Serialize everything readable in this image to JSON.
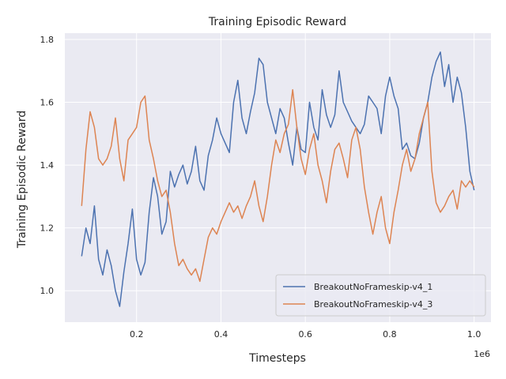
{
  "chart_data": {
    "type": "line",
    "title": "Training Episodic Reward",
    "xlabel": "Timesteps",
    "ylabel": "Training Episodic Reward",
    "x_offset_label": "1e6",
    "xlim": [
      0.03,
      1.04
    ],
    "ylim": [
      0.9,
      1.82
    ],
    "x_ticks": [
      0.2,
      0.4,
      0.6,
      0.8,
      1.0
    ],
    "x_tick_labels": [
      "0.2",
      "0.4",
      "0.6",
      "0.8",
      "1.0"
    ],
    "y_ticks": [
      1.0,
      1.2,
      1.4,
      1.6,
      1.8
    ],
    "y_tick_labels": [
      "1.0",
      "1.2",
      "1.4",
      "1.6",
      "1.8"
    ],
    "grid": true,
    "legend_position": "lower-right",
    "series": [
      {
        "name": "BreakoutNoFrameskip-v4_1",
        "color": "#4c72b0",
        "points": [
          [
            0.07,
            1.11
          ],
          [
            0.08,
            1.2
          ],
          [
            0.09,
            1.15
          ],
          [
            0.1,
            1.27
          ],
          [
            0.11,
            1.1
          ],
          [
            0.12,
            1.05
          ],
          [
            0.13,
            1.13
          ],
          [
            0.14,
            1.08
          ],
          [
            0.15,
            1.0
          ],
          [
            0.16,
            0.95
          ],
          [
            0.17,
            1.06
          ],
          [
            0.18,
            1.15
          ],
          [
            0.19,
            1.26
          ],
          [
            0.2,
            1.1
          ],
          [
            0.21,
            1.05
          ],
          [
            0.22,
            1.09
          ],
          [
            0.23,
            1.25
          ],
          [
            0.24,
            1.36
          ],
          [
            0.25,
            1.3
          ],
          [
            0.26,
            1.18
          ],
          [
            0.27,
            1.22
          ],
          [
            0.28,
            1.38
          ],
          [
            0.29,
            1.33
          ],
          [
            0.3,
            1.37
          ],
          [
            0.31,
            1.4
          ],
          [
            0.32,
            1.34
          ],
          [
            0.33,
            1.38
          ],
          [
            0.34,
            1.46
          ],
          [
            0.35,
            1.35
          ],
          [
            0.36,
            1.32
          ],
          [
            0.37,
            1.43
          ],
          [
            0.38,
            1.48
          ],
          [
            0.39,
            1.55
          ],
          [
            0.4,
            1.5
          ],
          [
            0.41,
            1.47
          ],
          [
            0.42,
            1.44
          ],
          [
            0.43,
            1.6
          ],
          [
            0.44,
            1.67
          ],
          [
            0.45,
            1.55
          ],
          [
            0.46,
            1.5
          ],
          [
            0.47,
            1.57
          ],
          [
            0.48,
            1.63
          ],
          [
            0.49,
            1.74
          ],
          [
            0.5,
            1.72
          ],
          [
            0.51,
            1.6
          ],
          [
            0.52,
            1.55
          ],
          [
            0.53,
            1.5
          ],
          [
            0.54,
            1.58
          ],
          [
            0.55,
            1.55
          ],
          [
            0.56,
            1.47
          ],
          [
            0.57,
            1.4
          ],
          [
            0.58,
            1.52
          ],
          [
            0.59,
            1.45
          ],
          [
            0.6,
            1.44
          ],
          [
            0.61,
            1.6
          ],
          [
            0.62,
            1.52
          ],
          [
            0.63,
            1.48
          ],
          [
            0.64,
            1.64
          ],
          [
            0.65,
            1.56
          ],
          [
            0.66,
            1.52
          ],
          [
            0.67,
            1.56
          ],
          [
            0.68,
            1.7
          ],
          [
            0.69,
            1.6
          ],
          [
            0.7,
            1.57
          ],
          [
            0.71,
            1.54
          ],
          [
            0.72,
            1.52
          ],
          [
            0.73,
            1.5
          ],
          [
            0.74,
            1.53
          ],
          [
            0.75,
            1.62
          ],
          [
            0.76,
            1.6
          ],
          [
            0.77,
            1.58
          ],
          [
            0.78,
            1.5
          ],
          [
            0.79,
            1.62
          ],
          [
            0.8,
            1.68
          ],
          [
            0.81,
            1.62
          ],
          [
            0.82,
            1.58
          ],
          [
            0.83,
            1.45
          ],
          [
            0.84,
            1.47
          ],
          [
            0.85,
            1.43
          ],
          [
            0.86,
            1.42
          ],
          [
            0.87,
            1.47
          ],
          [
            0.88,
            1.55
          ],
          [
            0.89,
            1.6
          ],
          [
            0.9,
            1.68
          ],
          [
            0.91,
            1.73
          ],
          [
            0.92,
            1.76
          ],
          [
            0.93,
            1.65
          ],
          [
            0.94,
            1.72
          ],
          [
            0.95,
            1.6
          ],
          [
            0.96,
            1.68
          ],
          [
            0.97,
            1.63
          ],
          [
            0.98,
            1.52
          ],
          [
            0.99,
            1.38
          ],
          [
            1.0,
            1.32
          ]
        ]
      },
      {
        "name": "BreakoutNoFrameskip-v4_3",
        "color": "#dd8452",
        "points": [
          [
            0.07,
            1.27
          ],
          [
            0.08,
            1.45
          ],
          [
            0.09,
            1.57
          ],
          [
            0.1,
            1.52
          ],
          [
            0.11,
            1.42
          ],
          [
            0.12,
            1.4
          ],
          [
            0.13,
            1.42
          ],
          [
            0.14,
            1.46
          ],
          [
            0.15,
            1.55
          ],
          [
            0.16,
            1.42
          ],
          [
            0.17,
            1.35
          ],
          [
            0.18,
            1.48
          ],
          [
            0.19,
            1.5
          ],
          [
            0.2,
            1.52
          ],
          [
            0.21,
            1.6
          ],
          [
            0.22,
            1.62
          ],
          [
            0.23,
            1.48
          ],
          [
            0.24,
            1.42
          ],
          [
            0.25,
            1.35
          ],
          [
            0.26,
            1.3
          ],
          [
            0.27,
            1.32
          ],
          [
            0.28,
            1.25
          ],
          [
            0.29,
            1.15
          ],
          [
            0.3,
            1.08
          ],
          [
            0.31,
            1.1
          ],
          [
            0.32,
            1.07
          ],
          [
            0.33,
            1.05
          ],
          [
            0.34,
            1.07
          ],
          [
            0.35,
            1.03
          ],
          [
            0.36,
            1.1
          ],
          [
            0.37,
            1.17
          ],
          [
            0.38,
            1.2
          ],
          [
            0.39,
            1.18
          ],
          [
            0.4,
            1.22
          ],
          [
            0.41,
            1.25
          ],
          [
            0.42,
            1.28
          ],
          [
            0.43,
            1.25
          ],
          [
            0.44,
            1.27
          ],
          [
            0.45,
            1.23
          ],
          [
            0.46,
            1.27
          ],
          [
            0.47,
            1.3
          ],
          [
            0.48,
            1.35
          ],
          [
            0.49,
            1.27
          ],
          [
            0.5,
            1.22
          ],
          [
            0.51,
            1.3
          ],
          [
            0.52,
            1.4
          ],
          [
            0.53,
            1.48
          ],
          [
            0.54,
            1.44
          ],
          [
            0.55,
            1.5
          ],
          [
            0.56,
            1.53
          ],
          [
            0.57,
            1.64
          ],
          [
            0.58,
            1.52
          ],
          [
            0.59,
            1.42
          ],
          [
            0.6,
            1.37
          ],
          [
            0.61,
            1.45
          ],
          [
            0.62,
            1.5
          ],
          [
            0.63,
            1.4
          ],
          [
            0.64,
            1.35
          ],
          [
            0.65,
            1.28
          ],
          [
            0.66,
            1.38
          ],
          [
            0.67,
            1.45
          ],
          [
            0.68,
            1.47
          ],
          [
            0.69,
            1.42
          ],
          [
            0.7,
            1.36
          ],
          [
            0.71,
            1.48
          ],
          [
            0.72,
            1.52
          ],
          [
            0.73,
            1.45
          ],
          [
            0.74,
            1.33
          ],
          [
            0.75,
            1.25
          ],
          [
            0.76,
            1.18
          ],
          [
            0.77,
            1.25
          ],
          [
            0.78,
            1.3
          ],
          [
            0.79,
            1.2
          ],
          [
            0.8,
            1.15
          ],
          [
            0.81,
            1.25
          ],
          [
            0.82,
            1.32
          ],
          [
            0.83,
            1.4
          ],
          [
            0.84,
            1.45
          ],
          [
            0.85,
            1.38
          ],
          [
            0.86,
            1.42
          ],
          [
            0.87,
            1.5
          ],
          [
            0.88,
            1.55
          ],
          [
            0.89,
            1.6
          ],
          [
            0.9,
            1.38
          ],
          [
            0.91,
            1.28
          ],
          [
            0.92,
            1.25
          ],
          [
            0.93,
            1.27
          ],
          [
            0.94,
            1.3
          ],
          [
            0.95,
            1.32
          ],
          [
            0.96,
            1.26
          ],
          [
            0.97,
            1.35
          ],
          [
            0.98,
            1.33
          ],
          [
            0.99,
            1.35
          ],
          [
            1.0,
            1.33
          ]
        ]
      }
    ]
  }
}
